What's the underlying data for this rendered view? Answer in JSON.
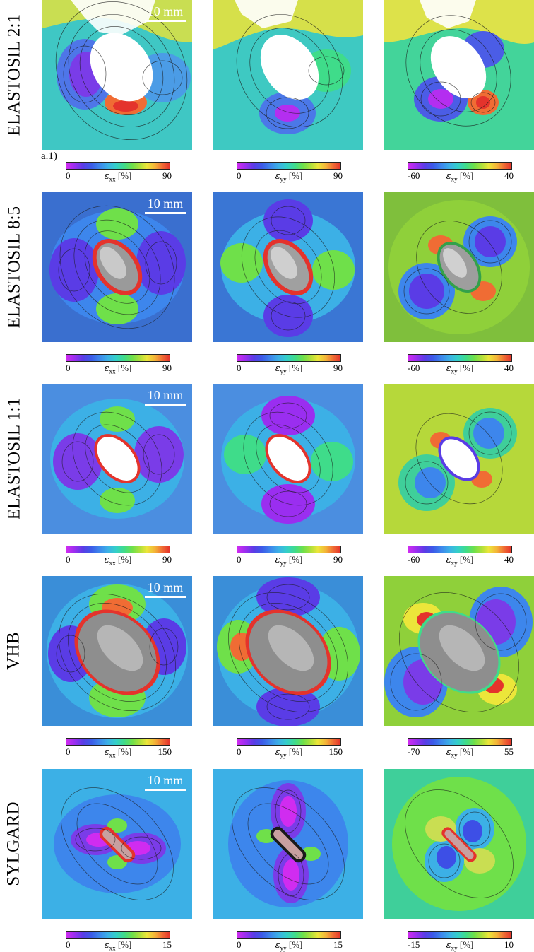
{
  "figure": {
    "rows": [
      {
        "label": "ELASTOSIL 2:1",
        "scale_bar": "10 mm",
        "sub_label": "a.1)",
        "colorbars": [
          {
            "min": "0",
            "component": "xx",
            "unit": "[%]",
            "max": "90"
          },
          {
            "min": "0",
            "component": "yy",
            "unit": "[%]",
            "max": "90"
          },
          {
            "min": "-60",
            "component": "xy",
            "unit": "[%]",
            "max": "40"
          }
        ]
      },
      {
        "label": "ELASTOSIL 8:5",
        "scale_bar": "10 mm",
        "colorbars": [
          {
            "min": "0",
            "component": "xx",
            "unit": "[%]",
            "max": "90"
          },
          {
            "min": "0",
            "component": "yy",
            "unit": "[%]",
            "max": "90"
          },
          {
            "min": "-60",
            "component": "xy",
            "unit": "[%]",
            "max": "40"
          }
        ]
      },
      {
        "label": "ELASTOSIL 1:1",
        "scale_bar": "10 mm",
        "colorbars": [
          {
            "min": "0",
            "component": "xx",
            "unit": "[%]",
            "max": "90"
          },
          {
            "min": "0",
            "component": "yy",
            "unit": "[%]",
            "max": "90"
          },
          {
            "min": "-60",
            "component": "xy",
            "unit": "[%]",
            "max": "40"
          }
        ]
      },
      {
        "label": "VHB",
        "scale_bar": "10 mm",
        "colorbars": [
          {
            "min": "0",
            "component": "xx",
            "unit": "[%]",
            "max": "150"
          },
          {
            "min": "0",
            "component": "yy",
            "unit": "[%]",
            "max": "150"
          },
          {
            "min": "-70",
            "component": "xy",
            "unit": "[%]",
            "max": "55"
          }
        ]
      },
      {
        "label": "SYLGARD",
        "scale_bar": "10 mm",
        "colorbars": [
          {
            "min": "0",
            "component": "xx",
            "unit": "[%]",
            "max": "15"
          },
          {
            "min": "0",
            "component": "yy",
            "unit": "[%]",
            "max": "15"
          },
          {
            "min": "-15",
            "component": "xy",
            "unit": "[%]",
            "max": "10"
          }
        ]
      }
    ],
    "strain_symbol": "ε",
    "colormap": [
      "#d02cf0",
      "#5a3ce6",
      "#3d86ec",
      "#34cfc9",
      "#6fe04a",
      "#ece63a",
      "#f06c34",
      "#e4332c"
    ]
  }
}
